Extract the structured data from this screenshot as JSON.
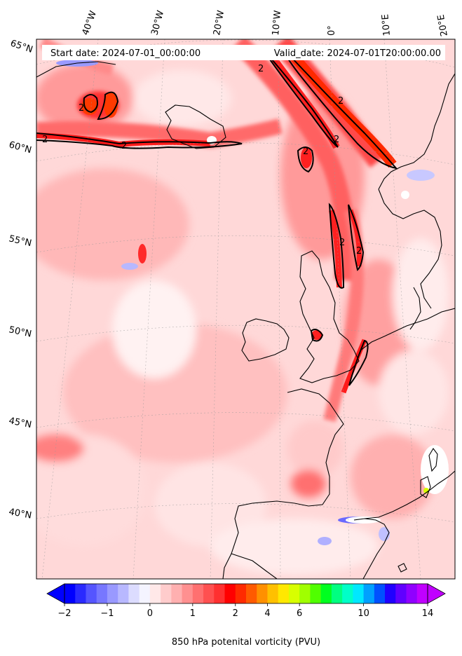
{
  "header": {
    "start_label": "Start date: 2024-07-01_00:00:00",
    "valid_label": "Valid_date: 2024-07-01T20:00:00.00"
  },
  "longitude_labels": [
    "40°W",
    "30°W",
    "20°W",
    "10°W",
    "0°",
    "10°E",
    "20°E"
  ],
  "latitude_labels": [
    "65°N",
    "60°N",
    "55°N",
    "50°N",
    "45°N",
    "40°N"
  ],
  "contour_label": "2",
  "colorbar": {
    "title": "850 hPa potenital vorticity (PVU)",
    "tick_labels": [
      "−2",
      "−1",
      "0",
      "1",
      "2",
      "4",
      "6",
      "10",
      "14"
    ],
    "tick_values": [
      -2,
      -1,
      0,
      1,
      2,
      4,
      6,
      10,
      14
    ],
    "colors": [
      "#0000ff",
      "#2a2aff",
      "#5555ff",
      "#7777ff",
      "#9999ff",
      "#b8b8ff",
      "#dcdcff",
      "#f4f4ff",
      "#ffe8e8",
      "#ffcccc",
      "#ffb0b0",
      "#ff9090",
      "#ff7070",
      "#ff5050",
      "#ff3030",
      "#ff0000",
      "#ff2a00",
      "#ff5a00",
      "#ff9000",
      "#ffc000",
      "#ffe800",
      "#d8ff00",
      "#a0ff00",
      "#50ff00",
      "#00ff20",
      "#00ff80",
      "#00ffc8",
      "#00e8ff",
      "#00a0ff",
      "#0050ff",
      "#2000ff",
      "#6000ff",
      "#9000ff",
      "#c000ff"
    ]
  }
}
